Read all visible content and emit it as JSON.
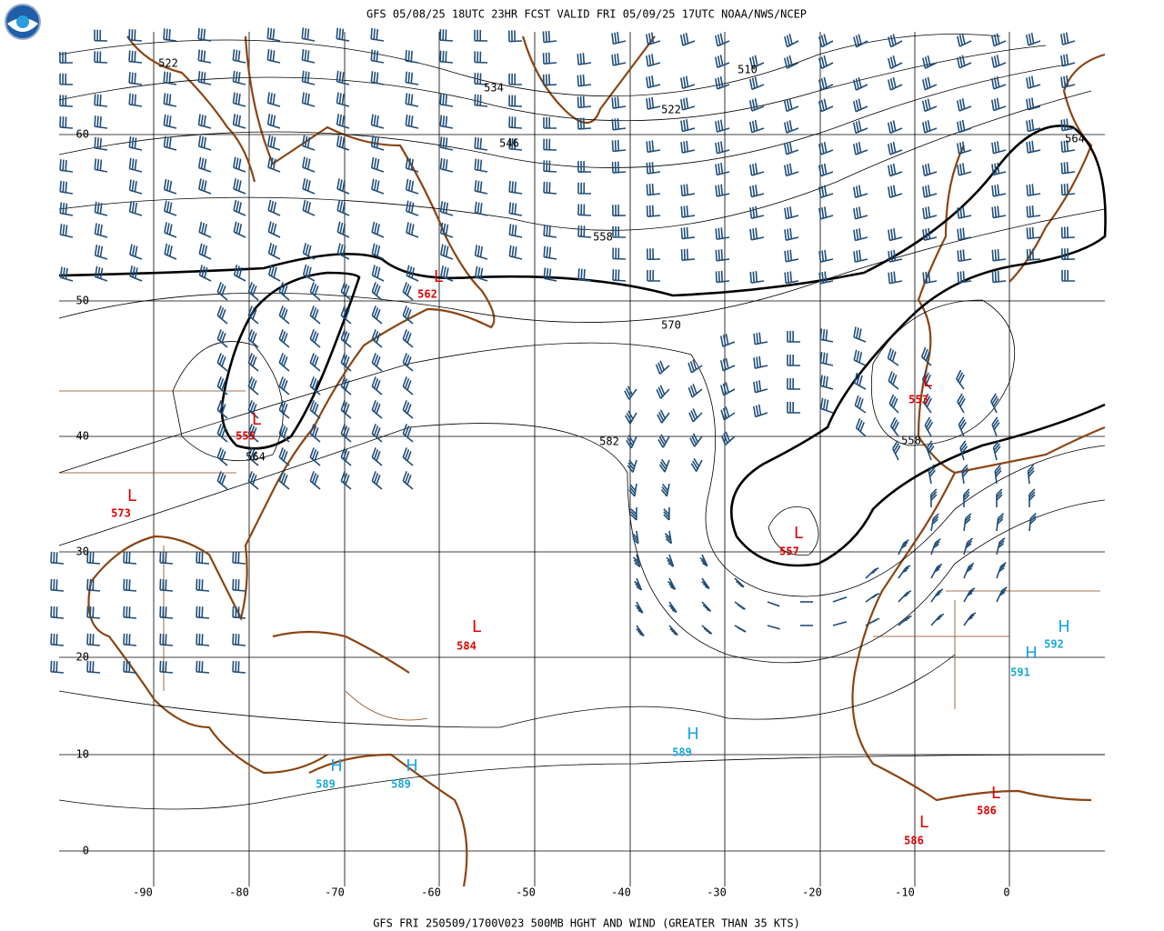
{
  "header": {
    "title": "GFS 05/08/25 18UTC 23HR FCST VALID FRI 05/09/25 17UTC NOAA/NWS/NCEP"
  },
  "footer": {
    "caption": "GFS FRI 250509/1700V023 500MB HGHT AND WIND (GREATER THAN 35 KTS)"
  },
  "map": {
    "latitude_labels": [
      "60",
      "50",
      "40",
      "30",
      "20",
      "10",
      "0"
    ],
    "longitude_labels": [
      "-90",
      "-80",
      "-70",
      "-60",
      "-50",
      "-40",
      "-30",
      "-20",
      "-10",
      "0"
    ],
    "contour_labels": [
      "522",
      "534",
      "510",
      "522",
      "546",
      "558",
      "570",
      "582",
      "564",
      "564",
      "558"
    ],
    "pressure_centers": [
      {
        "symbol": "L",
        "value": "562"
      },
      {
        "symbol": "L",
        "value": "555"
      },
      {
        "symbol": "L",
        "value": "573"
      },
      {
        "symbol": "L",
        "value": "584"
      },
      {
        "symbol": "L",
        "value": "553"
      },
      {
        "symbol": "L",
        "value": "557"
      },
      {
        "symbol": "H",
        "value": "589"
      },
      {
        "symbol": "H",
        "value": "589"
      },
      {
        "symbol": "H",
        "value": "589"
      },
      {
        "symbol": "H",
        "value": "591"
      },
      {
        "symbol": "H",
        "value": "592"
      },
      {
        "symbol": "L",
        "value": "586"
      },
      {
        "symbol": "L",
        "value": "586"
      }
    ]
  }
}
